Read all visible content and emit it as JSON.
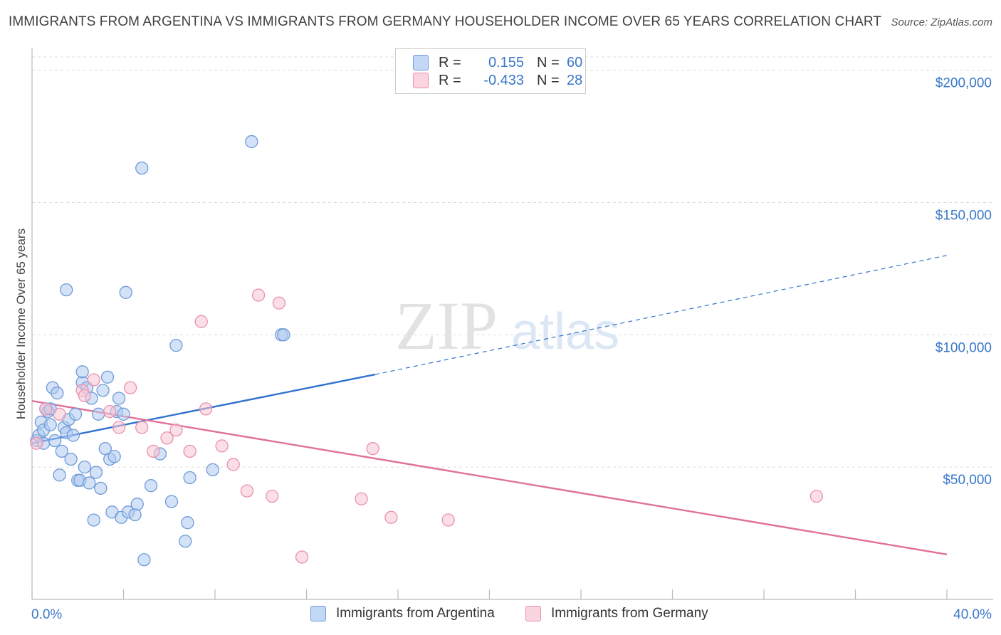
{
  "title": "IMMIGRANTS FROM ARGENTINA VS IMMIGRANTS FROM GERMANY HOUSEHOLDER INCOME OVER 65 YEARS CORRELATION CHART",
  "source": "Source: ZipAtlas.com",
  "watermark": {
    "zip": "ZIP",
    "atlas": "atlas"
  },
  "legend": {
    "argentina": {
      "r_label": "R =",
      "r_value": "0.155",
      "n_label": "N =",
      "n_value": "60"
    },
    "germany": {
      "r_label": "R =",
      "r_value": "-0.433",
      "n_label": "N =",
      "n_value": "28"
    }
  },
  "colors": {
    "argentina_fill": "#aecbf0",
    "argentina_stroke": "#6f9bd8",
    "argentina_line": "#2f72cf",
    "germany_fill": "#f7c5d3",
    "germany_stroke": "#e991ad",
    "germany_line": "#e0709a",
    "axis_text": "#3a78c9"
  },
  "chart_data": {
    "type": "scatter",
    "title": "IMMIGRANTS FROM ARGENTINA VS IMMIGRANTS FROM GERMANY HOUSEHOLDER INCOME OVER 65 YEARS CORRELATION CHART",
    "xlabel": "",
    "ylabel": "Householder Income Over 65 years",
    "xlim": [
      0,
      40
    ],
    "ylim": [
      0,
      205000
    ],
    "x_tick_labels": [
      "0.0%",
      "40.0%"
    ],
    "y_ticks": [
      50000,
      100000,
      150000,
      200000
    ],
    "y_tick_labels": [
      "$50,000",
      "$100,000",
      "$150,000",
      "$200,000"
    ],
    "grid": true,
    "legend_position": "top-center",
    "series": [
      {
        "name": "Immigrants from Argentina",
        "r": 0.155,
        "n": 60,
        "trend": {
          "x0": 0,
          "y0": 59000,
          "x_solid_end": 15,
          "y_solid_end": 85000,
          "x1": 40,
          "y1": 130000
        },
        "points": [
          [
            0.2,
            60000
          ],
          [
            0.3,
            62000
          ],
          [
            0.4,
            67000
          ],
          [
            0.5,
            64000
          ],
          [
            0.5,
            59000
          ],
          [
            0.6,
            72000
          ],
          [
            0.7,
            71000
          ],
          [
            0.8,
            66000
          ],
          [
            0.8,
            72000
          ],
          [
            0.9,
            80000
          ],
          [
            1.0,
            60000
          ],
          [
            1.1,
            78000
          ],
          [
            1.2,
            47000
          ],
          [
            1.3,
            56000
          ],
          [
            1.4,
            65000
          ],
          [
            1.5,
            63000
          ],
          [
            1.5,
            117000
          ],
          [
            1.6,
            68000
          ],
          [
            1.7,
            53000
          ],
          [
            1.8,
            62000
          ],
          [
            1.9,
            70000
          ],
          [
            2.0,
            45000
          ],
          [
            2.1,
            45000
          ],
          [
            2.2,
            82000
          ],
          [
            2.2,
            86000
          ],
          [
            2.3,
            50000
          ],
          [
            2.4,
            80000
          ],
          [
            2.5,
            44000
          ],
          [
            2.6,
            76000
          ],
          [
            2.7,
            30000
          ],
          [
            2.8,
            48000
          ],
          [
            2.9,
            70000
          ],
          [
            3.0,
            42000
          ],
          [
            3.1,
            79000
          ],
          [
            3.2,
            57000
          ],
          [
            3.3,
            84000
          ],
          [
            3.4,
            53000
          ],
          [
            3.5,
            33000
          ],
          [
            3.6,
            54000
          ],
          [
            3.7,
            71000
          ],
          [
            3.8,
            76000
          ],
          [
            3.9,
            31000
          ],
          [
            4.0,
            70000
          ],
          [
            4.1,
            116000
          ],
          [
            4.2,
            33000
          ],
          [
            4.5,
            32000
          ],
          [
            4.6,
            36000
          ],
          [
            4.8,
            163000
          ],
          [
            4.9,
            15000
          ],
          [
            5.2,
            43000
          ],
          [
            5.6,
            55000
          ],
          [
            6.1,
            37000
          ],
          [
            6.3,
            96000
          ],
          [
            6.7,
            22000
          ],
          [
            6.8,
            29000
          ],
          [
            6.9,
            46000
          ],
          [
            7.9,
            49000
          ],
          [
            9.6,
            173000
          ],
          [
            10.9,
            100000
          ],
          [
            11.0,
            100000
          ]
        ]
      },
      {
        "name": "Immigrants from Germany",
        "r": -0.433,
        "n": 28,
        "trend": {
          "x0": 0,
          "y0": 75000,
          "x1": 40,
          "y1": 17000
        },
        "points": [
          [
            0.2,
            59000
          ],
          [
            0.6,
            72000
          ],
          [
            1.2,
            70000
          ],
          [
            2.2,
            79000
          ],
          [
            2.3,
            77000
          ],
          [
            2.7,
            83000
          ],
          [
            3.4,
            71000
          ],
          [
            3.8,
            65000
          ],
          [
            4.3,
            80000
          ],
          [
            4.8,
            65000
          ],
          [
            5.3,
            56000
          ],
          [
            5.9,
            61000
          ],
          [
            6.3,
            64000
          ],
          [
            6.9,
            56000
          ],
          [
            7.4,
            105000
          ],
          [
            7.6,
            72000
          ],
          [
            8.3,
            58000
          ],
          [
            8.8,
            51000
          ],
          [
            9.4,
            41000
          ],
          [
            9.9,
            115000
          ],
          [
            10.5,
            39000
          ],
          [
            10.8,
            112000
          ],
          [
            11.8,
            16000
          ],
          [
            14.4,
            38000
          ],
          [
            14.9,
            57000
          ],
          [
            15.7,
            31000
          ],
          [
            18.2,
            30000
          ],
          [
            34.3,
            39000
          ]
        ]
      }
    ]
  },
  "bottom_legend": {
    "argentina": "Immigrants from Argentina",
    "germany": "Immigrants from Germany"
  }
}
